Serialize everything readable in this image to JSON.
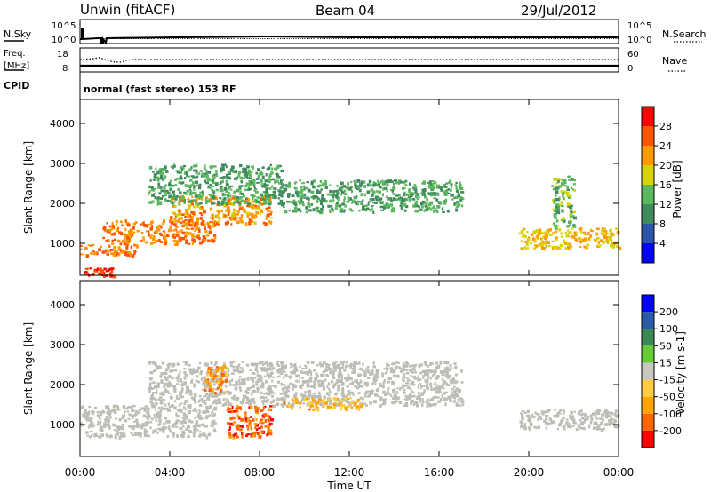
{
  "header": {
    "station": "Unwin (fitACF)",
    "beam": "Beam 04",
    "date": "29/Jul/2012"
  },
  "noise_panel": {
    "left_label": "N.Sky",
    "right_label": "N.Search",
    "ticks": [
      "10^5",
      "10^0"
    ]
  },
  "freq_panel": {
    "left_label_1": "Freq.",
    "left_label_2": "[MHz]",
    "left_ticks": [
      "18",
      "8"
    ],
    "right_label": "Nave",
    "right_ticks": [
      "60",
      "0"
    ]
  },
  "cpid": {
    "label": "CPID",
    "text": "normal (fast stereo) 153 RF"
  },
  "colors": {
    "power": [
      "#0000ff",
      "#2b55a8",
      "#3f8a5f",
      "#5cb85c",
      "#d4d400",
      "#ff9900",
      "#ff5500",
      "#ff0000"
    ],
    "velocity": [
      "#ff0000",
      "#ff6600",
      "#ffa500",
      "#ffcc44",
      "#c8c8c0",
      "#66cc33",
      "#3b8a55",
      "#2a5aa8",
      "#0000ff"
    ],
    "ground_scatter": "#bdbdb5"
  },
  "chart_data": [
    {
      "type": "heatmap",
      "quantity": "Power",
      "ylabel": "Slant Range [km]",
      "yticks": [
        1000,
        2000,
        3000,
        4000
      ],
      "ylim": [
        200,
        4600
      ],
      "xlim_hours": [
        0,
        24
      ],
      "colorbar": {
        "title": "Power [dB]",
        "ticks": [
          "4",
          "8",
          "12",
          "16",
          "20",
          "24",
          "28"
        ],
        "range": [
          0,
          32
        ]
      },
      "echo_bands": [
        {
          "t0": 0.0,
          "t1": 1.5,
          "r0": 200,
          "r1": 400,
          "val": 28
        },
        {
          "t0": 0.0,
          "t1": 2.5,
          "r0": 700,
          "r1": 1000,
          "val": 24
        },
        {
          "t0": 1.0,
          "t1": 6.0,
          "r0": 1000,
          "r1": 1600,
          "val": 24
        },
        {
          "t0": 4.0,
          "t1": 8.5,
          "r0": 1500,
          "r1": 2200,
          "val": 22
        },
        {
          "t0": 3.0,
          "t1": 9.0,
          "r0": 2000,
          "r1": 3000,
          "val": 12
        },
        {
          "t0": 9.0,
          "t1": 17.0,
          "r0": 1800,
          "r1": 2600,
          "val": 12
        },
        {
          "t0": 19.5,
          "t1": 24.0,
          "r0": 900,
          "r1": 1400,
          "val": 20
        },
        {
          "t0": 21.0,
          "t1": 22.0,
          "r0": 1400,
          "r1": 2700,
          "val": 14
        }
      ]
    },
    {
      "type": "heatmap",
      "quantity": "Velocity",
      "ylabel": "Slant Range [km]",
      "yticks": [
        1000,
        2000,
        3000,
        4000
      ],
      "ylim": [
        200,
        4600
      ],
      "xlim_hours": [
        0,
        24
      ],
      "xticks": [
        "00:00",
        "04:00",
        "08:00",
        "12:00",
        "16:00",
        "20:00",
        "00:00"
      ],
      "xlabel": "Time UT",
      "colorbar": {
        "title": "Velocity [m s-1]",
        "ticks": [
          "-200",
          "-100",
          "-50",
          "-15",
          "15",
          "50",
          "100",
          "200"
        ],
        "range": [
          -300,
          300
        ]
      },
      "echo_bands": [
        {
          "t0": 0.0,
          "t1": 6.0,
          "r0": 700,
          "r1": 1500,
          "val": 0
        },
        {
          "t0": 3.0,
          "t1": 17.0,
          "r0": 1500,
          "r1": 2600,
          "val": 0
        },
        {
          "t0": 6.5,
          "t1": 8.5,
          "r0": 700,
          "r1": 1500,
          "val": -200
        },
        {
          "t0": 5.5,
          "t1": 6.5,
          "r0": 1800,
          "r1": 2500,
          "val": -150
        },
        {
          "t0": 9.0,
          "t1": 12.5,
          "r0": 1400,
          "r1": 1700,
          "val": -100
        },
        {
          "t0": 19.5,
          "t1": 24.0,
          "r0": 900,
          "r1": 1400,
          "val": 0
        }
      ]
    }
  ]
}
